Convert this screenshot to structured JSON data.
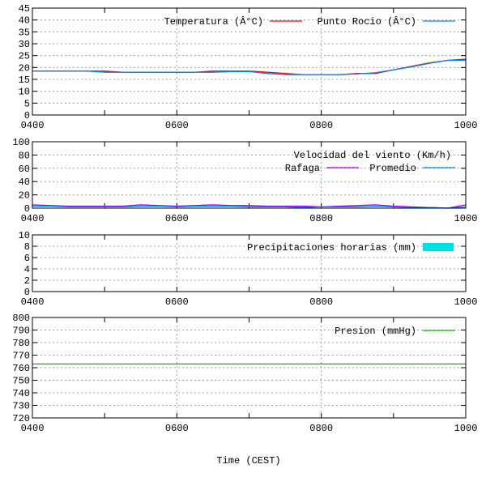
{
  "xlabel": "Time (CEST)",
  "chart_data": [
    {
      "type": "line",
      "title": "",
      "ylim": [
        0,
        45
      ],
      "yticks": [
        "0",
        "5",
        "10",
        "15",
        "20",
        "25",
        "30",
        "35",
        "40",
        "45"
      ],
      "xlim": [
        4,
        10
      ],
      "xticks": [
        {
          "v": 4,
          "label": "0400"
        },
        {
          "v": 6,
          "label": "0600"
        },
        {
          "v": 8,
          "label": "0800"
        },
        {
          "v": 10,
          "label": "1000"
        }
      ],
      "legend_title": "",
      "x": [
        4,
        4.25,
        4.5,
        4.75,
        5,
        5.25,
        5.5,
        5.75,
        6,
        6.25,
        6.5,
        6.75,
        7,
        7.25,
        7.5,
        7.75,
        8,
        8.25,
        8.5,
        8.75,
        9,
        9.25,
        9.5,
        9.75,
        10
      ],
      "series": [
        {
          "name": "Temperatura (Â°C)",
          "color": "#ff0000",
          "values": [
            18.5,
            18.5,
            18.5,
            18.5,
            18.5,
            18,
            18,
            18,
            18,
            18,
            18.5,
            18.5,
            18.5,
            18,
            17.5,
            17,
            17,
            17,
            17.5,
            17.5,
            19,
            20.5,
            22,
            23,
            23.5
          ]
        },
        {
          "name": "Punto Rocio (Â°C)",
          "color": "#0080ff",
          "values": [
            18.5,
            18.5,
            18.5,
            18.5,
            18,
            18,
            18,
            18,
            18,
            18,
            18,
            18.3,
            18.3,
            17.5,
            17,
            17,
            17,
            17,
            17.3,
            17.8,
            19,
            20.3,
            21.8,
            23,
            23
          ]
        }
      ]
    },
    {
      "type": "line",
      "ylim": [
        0,
        100
      ],
      "yticks": [
        "0",
        "20",
        "40",
        "60",
        "80",
        "100"
      ],
      "xlim": [
        4,
        10
      ],
      "xticks": [
        {
          "v": 4,
          "label": "0400"
        },
        {
          "v": 6,
          "label": "0600"
        },
        {
          "v": 8,
          "label": "0800"
        },
        {
          "v": 10,
          "label": "1000"
        }
      ],
      "legend_title": "Velocidad del viento (Km/h)",
      "x": [
        4,
        4.25,
        4.5,
        4.75,
        5,
        5.25,
        5.5,
        5.75,
        6,
        6.25,
        6.5,
        6.75,
        7,
        7.25,
        7.5,
        7.75,
        8,
        8.25,
        8.5,
        8.75,
        9,
        9.25,
        9.5,
        9.75,
        10
      ],
      "series": [
        {
          "name": "Rafaga",
          "color": "#a000ff",
          "values": [
            5,
            4,
            3,
            3,
            3,
            3,
            5,
            4,
            3,
            4,
            5,
            4,
            4,
            3,
            3,
            3,
            2,
            3,
            4,
            5,
            3,
            2,
            1,
            0,
            5
          ]
        },
        {
          "name": "Promedio",
          "color": "#0080ff",
          "values": [
            3,
            3,
            2,
            2,
            2,
            2,
            3,
            3,
            2,
            3,
            3,
            3,
            2,
            2,
            2,
            1,
            2,
            2,
            2,
            3,
            2,
            1,
            1,
            0,
            2
          ]
        }
      ]
    },
    {
      "type": "bar",
      "ylim": [
        0,
        10
      ],
      "yticks": [
        "0",
        "2",
        "4",
        "6",
        "8",
        "10"
      ],
      "xlim": [
        4,
        10
      ],
      "xticks": [
        {
          "v": 4,
          "label": "0400"
        },
        {
          "v": 6,
          "label": "0600"
        },
        {
          "v": 8,
          "label": "0800"
        },
        {
          "v": 10,
          "label": "1000"
        }
      ],
      "legend_title": "",
      "x": [
        4,
        5,
        6,
        7,
        8,
        9,
        10
      ],
      "series": [
        {
          "name": "Precipitaciones horarias (mm)",
          "color": "#00e0e0",
          "box": true,
          "values": [
            0,
            0,
            0,
            0,
            0,
            0,
            0
          ]
        }
      ]
    },
    {
      "type": "line",
      "ylim": [
        720,
        800
      ],
      "yticks": [
        "720",
        "730",
        "740",
        "750",
        "760",
        "770",
        "780",
        "790",
        "800"
      ],
      "xlim": [
        4,
        10
      ],
      "xticks": [
        {
          "v": 4,
          "label": "0400"
        },
        {
          "v": 6,
          "label": "0600"
        },
        {
          "v": 8,
          "label": "0800"
        },
        {
          "v": 10,
          "label": "1000"
        }
      ],
      "legend_title": "",
      "x": [
        4,
        10
      ],
      "series": [
        {
          "name": "Presion (mmHg)",
          "color": "#00c000",
          "values": [
            763,
            763
          ]
        }
      ]
    }
  ]
}
